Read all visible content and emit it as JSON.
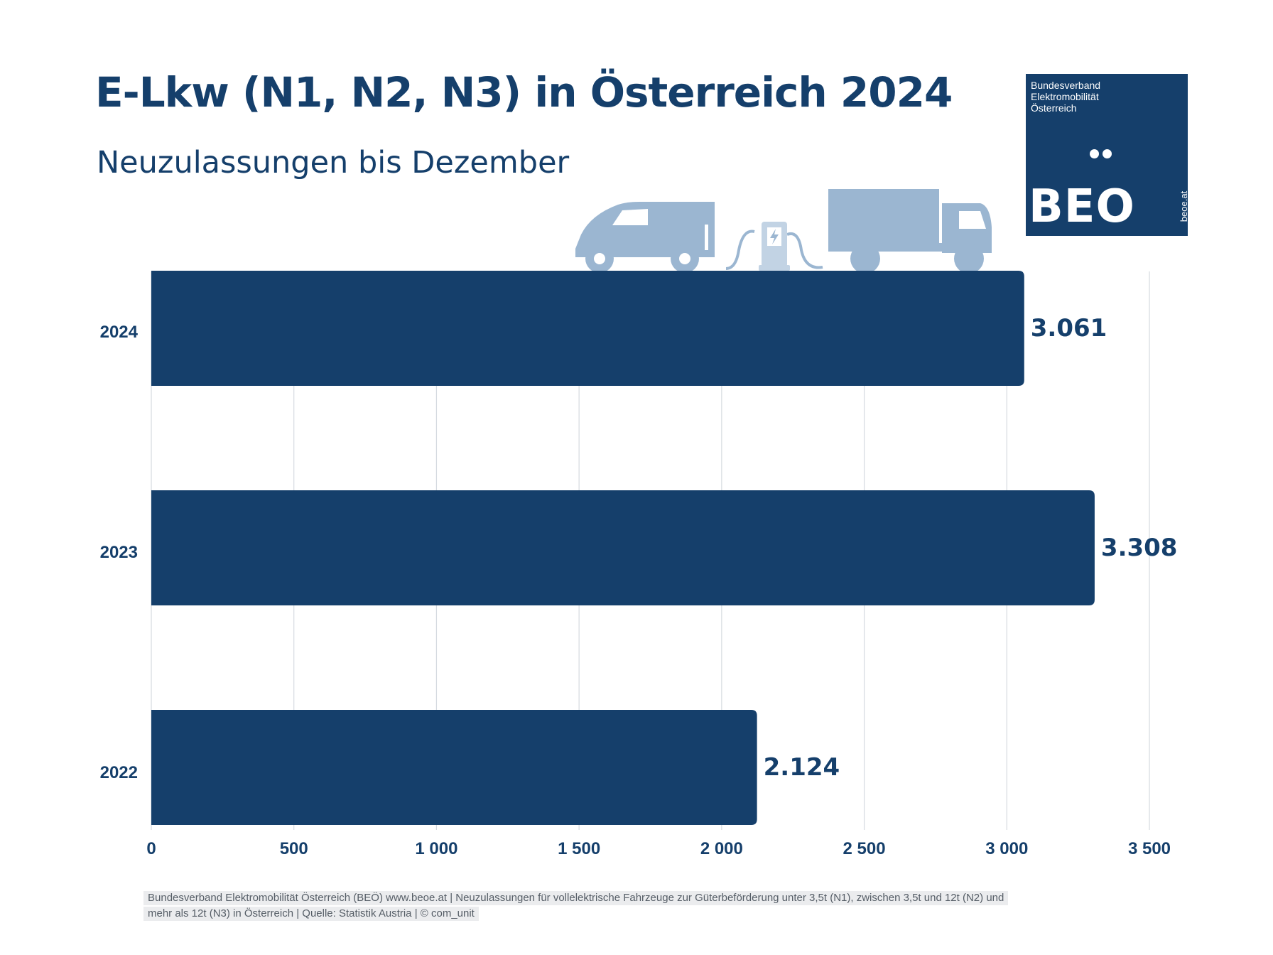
{
  "header": {
    "title": "E-Lkw (N1, N2, N3) in Österreich 2024",
    "subtitle": "Neuzulassungen bis Dezember"
  },
  "logo": {
    "org_lines": [
      "Bundesverband",
      "Elektromobilität",
      "Österreich"
    ],
    "wordmark": "BEO",
    "url": "beoe.at"
  },
  "illustration": {
    "icons": [
      "van-icon",
      "charging-station-icon",
      "truck-icon"
    ]
  },
  "chart_data": {
    "type": "bar",
    "orientation": "horizontal",
    "categories": [
      "2024",
      "2023",
      "2022"
    ],
    "values": [
      3061,
      3308,
      2124
    ],
    "value_labels": [
      "3.061",
      "3.308",
      "2.124"
    ],
    "xlim": [
      0,
      3500
    ],
    "xticks": [
      0,
      500,
      1000,
      1500,
      2000,
      2500,
      3000,
      3500
    ],
    "xtick_labels": [
      "0",
      "500",
      "1 000",
      "1 500",
      "2 000",
      "2 500",
      "3 000",
      "3 500"
    ],
    "grid": true,
    "legend": "none",
    "bar_color": "#153f6b"
  },
  "colors": {
    "primary": "#153f6b",
    "icon": "#9bb6d1",
    "grid": "#d5dae0"
  },
  "footer": {
    "line1": "Bundesverband Elektromobilität Österreich (BEÖ) www.beoe.at | Neuzulassungen für vollelektrische Fahrzeuge zur Güterbeförderung unter 3,5t (N1), zwischen 3,5t und 12t (N2) und",
    "line2": "mehr als 12t (N3) in Österreich | Quelle: Statistik Austria | © com_unit"
  }
}
